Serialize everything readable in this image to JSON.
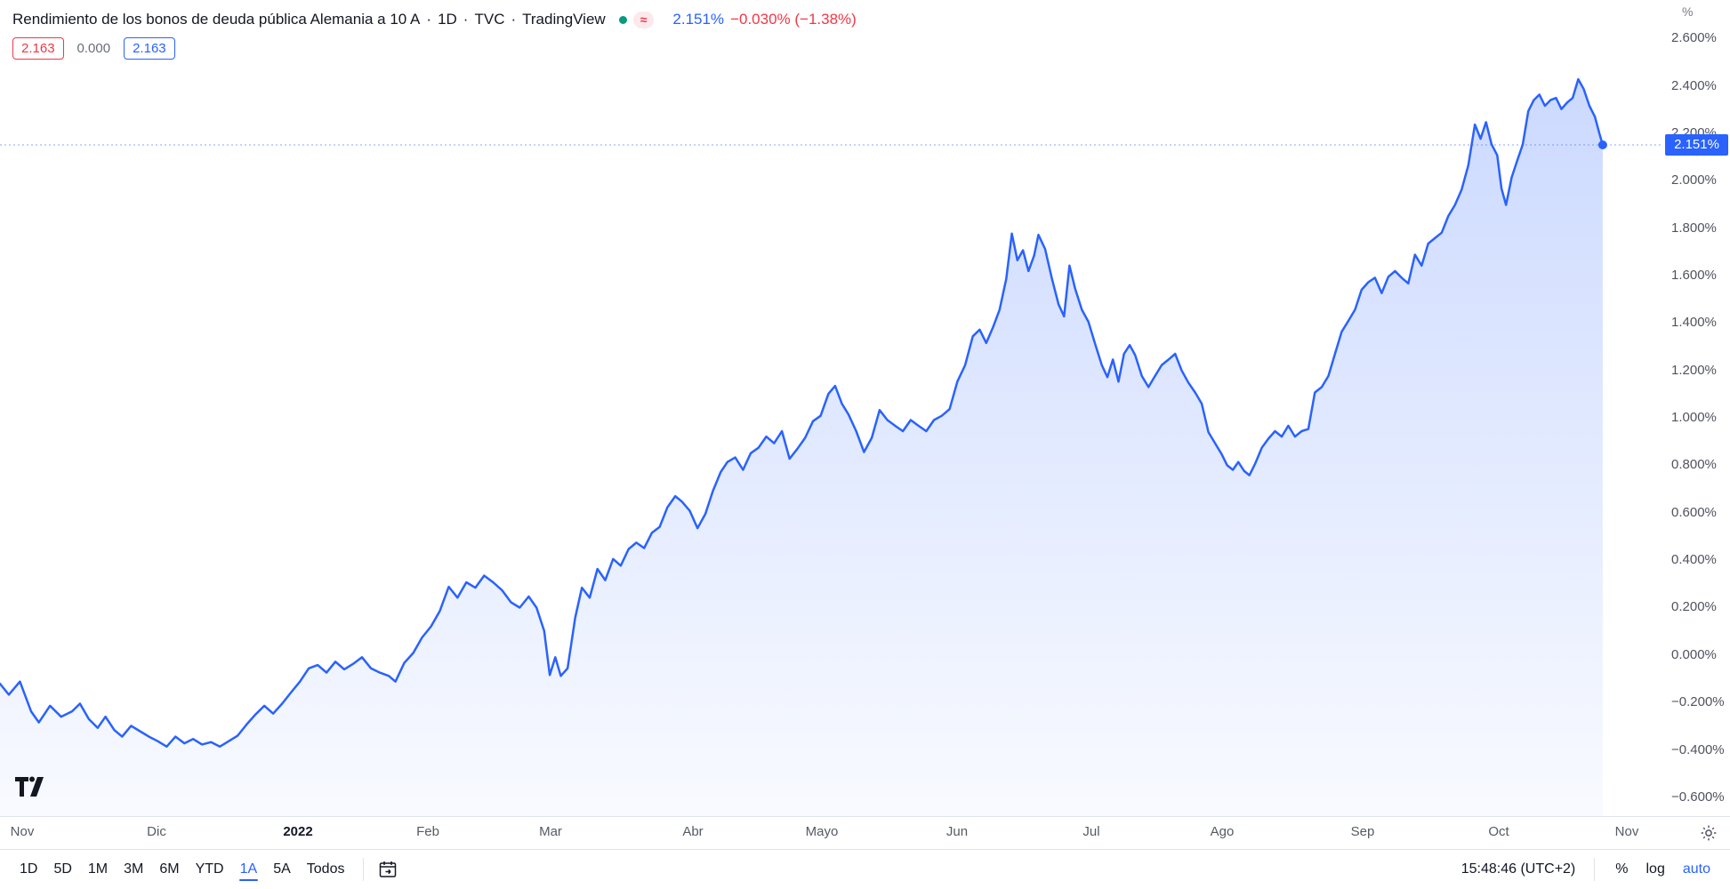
{
  "header": {
    "title": "Rendimiento de los bonos de deuda pública Alemania a 10 A",
    "sep": "·",
    "interval": "1D",
    "exchange": "TVC",
    "provider": "TradingView",
    "approx_marker": "≈",
    "last_value": "2.151%",
    "change": "−0.030% (−1.38%)",
    "badges": [
      {
        "text": "2.163",
        "variant": "red"
      },
      {
        "text": "0.000",
        "variant": "plain"
      },
      {
        "text": "2.163",
        "variant": "blue"
      }
    ]
  },
  "axes": {
    "y_unit": "%"
  },
  "colors": {
    "accent_blue": "#2962ff",
    "down_red": "#f23645",
    "up_green": "#089981",
    "border": "#e0e3eb",
    "axis_text": "#50535e"
  },
  "toolbar": {
    "ranges": [
      "1D",
      "5D",
      "1M",
      "3M",
      "6M",
      "YTD",
      "1A",
      "5A",
      "Todos"
    ],
    "active_range": "1A",
    "clock": "15:48:46 (UTC+2)",
    "percent": "%",
    "log": "log",
    "auto": "auto"
  },
  "chart_data": {
    "type": "area",
    "title": "Rendimiento de los bonos de deuda pública Alemania a 10 A",
    "interval": "1D",
    "unit": "%",
    "legend_position": "none",
    "grid": false,
    "y_axis": {
      "min": -0.679,
      "max": 2.762,
      "tick_step": 0.2
    },
    "y_ticks": [
      {
        "label": "2.600%",
        "value": 2.6
      },
      {
        "label": "2.400%",
        "value": 2.4
      },
      {
        "label": "2.200%",
        "value": 2.2
      },
      {
        "label": "2.000%",
        "value": 2.0
      },
      {
        "label": "1.800%",
        "value": 1.8
      },
      {
        "label": "1.600%",
        "value": 1.6
      },
      {
        "label": "1.400%",
        "value": 1.4
      },
      {
        "label": "1.200%",
        "value": 1.2
      },
      {
        "label": "1.000%",
        "value": 1.0
      },
      {
        "label": "0.800%",
        "value": 0.8
      },
      {
        "label": "0.600%",
        "value": 0.6
      },
      {
        "label": "0.400%",
        "value": 0.4
      },
      {
        "label": "0.200%",
        "value": 0.2
      },
      {
        "label": "0.000%",
        "value": 0.0
      },
      {
        "label": "−0.200%",
        "value": -0.2
      },
      {
        "label": "−0.400%",
        "value": -0.4
      },
      {
        "label": "−0.600%",
        "value": -0.6
      }
    ],
    "x_ticks": [
      {
        "label": "Nov",
        "f": 0.0134
      },
      {
        "label": "Dic",
        "f": 0.0943
      },
      {
        "label": "2022",
        "f": 0.1791,
        "strong": true
      },
      {
        "label": "Feb",
        "f": 0.2573
      },
      {
        "label": "Mar",
        "f": 0.3316
      },
      {
        "label": "Abr",
        "f": 0.4171
      },
      {
        "label": "Mayo",
        "f": 0.4947
      },
      {
        "label": "Jun",
        "f": 0.5762
      },
      {
        "label": "Jul",
        "f": 0.6571
      },
      {
        "label": "Ago",
        "f": 0.7353
      },
      {
        "label": "Sep",
        "f": 0.8202
      },
      {
        "label": "Oct",
        "f": 0.9018
      },
      {
        "label": "Nov",
        "f": 0.9793
      }
    ],
    "price_line": {
      "value": 2.151,
      "label": "2.151%"
    },
    "series": [
      {
        "name": "Rendimiento de los bonos de deuda pública Alemania a 10 A",
        "color": "#2962ff",
        "points": [
          [
            0.0,
            -0.121
          ],
          [
            0.0053,
            -0.167
          ],
          [
            0.012,
            -0.112
          ],
          [
            0.0187,
            -0.237
          ],
          [
            0.0234,
            -0.284
          ],
          [
            0.0301,
            -0.214
          ],
          [
            0.0368,
            -0.26
          ],
          [
            0.0434,
            -0.237
          ],
          [
            0.0481,
            -0.205
          ],
          [
            0.0535,
            -0.27
          ],
          [
            0.0588,
            -0.307
          ],
          [
            0.0635,
            -0.26
          ],
          [
            0.0688,
            -0.316
          ],
          [
            0.0735,
            -0.344
          ],
          [
            0.0789,
            -0.298
          ],
          [
            0.0842,
            -0.321
          ],
          [
            0.0896,
            -0.344
          ],
          [
            0.0949,
            -0.363
          ],
          [
            0.1003,
            -0.386
          ],
          [
            0.1056,
            -0.344
          ],
          [
            0.111,
            -0.372
          ],
          [
            0.1163,
            -0.354
          ],
          [
            0.1216,
            -0.377
          ],
          [
            0.127,
            -0.367
          ],
          [
            0.1323,
            -0.386
          ],
          [
            0.1377,
            -0.363
          ],
          [
            0.143,
            -0.34
          ],
          [
            0.1484,
            -0.293
          ],
          [
            0.1537,
            -0.251
          ],
          [
            0.1591,
            -0.214
          ],
          [
            0.1644,
            -0.247
          ],
          [
            0.1698,
            -0.205
          ],
          [
            0.1751,
            -0.158
          ],
          [
            0.1805,
            -0.112
          ],
          [
            0.1858,
            -0.056
          ],
          [
            0.1912,
            -0.042
          ],
          [
            0.1965,
            -0.074
          ],
          [
            0.2019,
            -0.028
          ],
          [
            0.2072,
            -0.06
          ],
          [
            0.2126,
            -0.037
          ],
          [
            0.2179,
            -0.009
          ],
          [
            0.2233,
            -0.056
          ],
          [
            0.2286,
            -0.074
          ],
          [
            0.234,
            -0.088
          ],
          [
            0.238,
            -0.112
          ],
          [
            0.2433,
            -0.033
          ],
          [
            0.2487,
            0.009
          ],
          [
            0.254,
            0.074
          ],
          [
            0.2594,
            0.121
          ],
          [
            0.2647,
            0.186
          ],
          [
            0.2701,
            0.288
          ],
          [
            0.2754,
            0.242
          ],
          [
            0.2807,
            0.307
          ],
          [
            0.2861,
            0.284
          ],
          [
            0.2914,
            0.335
          ],
          [
            0.2968,
            0.307
          ],
          [
            0.3021,
            0.274
          ],
          [
            0.3075,
            0.223
          ],
          [
            0.3128,
            0.2
          ],
          [
            0.3182,
            0.247
          ],
          [
            0.3229,
            0.2
          ],
          [
            0.3275,
            0.102
          ],
          [
            0.3309,
            -0.084
          ],
          [
            0.3342,
            -0.009
          ],
          [
            0.3375,
            -0.088
          ],
          [
            0.3416,
            -0.056
          ],
          [
            0.3462,
            0.158
          ],
          [
            0.3502,
            0.284
          ],
          [
            0.3549,
            0.242
          ],
          [
            0.3596,
            0.363
          ],
          [
            0.3643,
            0.316
          ],
          [
            0.369,
            0.405
          ],
          [
            0.3736,
            0.377
          ],
          [
            0.3783,
            0.447
          ],
          [
            0.383,
            0.474
          ],
          [
            0.3877,
            0.451
          ],
          [
            0.3924,
            0.516
          ],
          [
            0.397,
            0.54
          ],
          [
            0.4017,
            0.623
          ],
          [
            0.4064,
            0.67
          ],
          [
            0.4104,
            0.647
          ],
          [
            0.4151,
            0.609
          ],
          [
            0.4198,
            0.535
          ],
          [
            0.4245,
            0.595
          ],
          [
            0.4291,
            0.693
          ],
          [
            0.4338,
            0.772
          ],
          [
            0.4378,
            0.814
          ],
          [
            0.4425,
            0.833
          ],
          [
            0.4472,
            0.781
          ],
          [
            0.4518,
            0.851
          ],
          [
            0.4565,
            0.874
          ],
          [
            0.4612,
            0.921
          ],
          [
            0.4659,
            0.893
          ],
          [
            0.4706,
            0.944
          ],
          [
            0.4752,
            0.828
          ],
          [
            0.4799,
            0.87
          ],
          [
            0.4846,
            0.916
          ],
          [
            0.4893,
            0.986
          ],
          [
            0.4939,
            1.009
          ],
          [
            0.4986,
            1.102
          ],
          [
            0.5026,
            1.135
          ],
          [
            0.5067,
            1.06
          ],
          [
            0.5107,
            1.014
          ],
          [
            0.5153,
            0.944
          ],
          [
            0.52,
            0.856
          ],
          [
            0.5247,
            0.916
          ],
          [
            0.5294,
            1.033
          ],
          [
            0.5341,
            0.991
          ],
          [
            0.5387,
            0.967
          ],
          [
            0.5434,
            0.944
          ],
          [
            0.5481,
            0.991
          ],
          [
            0.5528,
            0.967
          ],
          [
            0.5575,
            0.944
          ],
          [
            0.5621,
            0.991
          ],
          [
            0.5668,
            1.009
          ],
          [
            0.5715,
            1.037
          ],
          [
            0.5762,
            1.153
          ],
          [
            0.5809,
            1.223
          ],
          [
            0.5855,
            1.344
          ],
          [
            0.5896,
            1.372
          ],
          [
            0.5936,
            1.316
          ],
          [
            0.5976,
            1.381
          ],
          [
            0.6016,
            1.456
          ],
          [
            0.6056,
            1.586
          ],
          [
            0.609,
            1.777
          ],
          [
            0.6123,
            1.665
          ],
          [
            0.6157,
            1.707
          ],
          [
            0.619,
            1.619
          ],
          [
            0.6224,
            1.684
          ],
          [
            0.625,
            1.772
          ],
          [
            0.629,
            1.712
          ],
          [
            0.633,
            1.591
          ],
          [
            0.6371,
            1.479
          ],
          [
            0.6404,
            1.428
          ],
          [
            0.6437,
            1.642
          ],
          [
            0.6471,
            1.544
          ],
          [
            0.6511,
            1.456
          ],
          [
            0.6551,
            1.405
          ],
          [
            0.6591,
            1.312
          ],
          [
            0.6631,
            1.223
          ],
          [
            0.6665,
            1.172
          ],
          [
            0.6698,
            1.246
          ],
          [
            0.6732,
            1.153
          ],
          [
            0.6765,
            1.27
          ],
          [
            0.6799,
            1.307
          ],
          [
            0.6832,
            1.265
          ],
          [
            0.6872,
            1.177
          ],
          [
            0.6912,
            1.13
          ],
          [
            0.6952,
            1.177
          ],
          [
            0.6992,
            1.223
          ],
          [
            0.7033,
            1.246
          ],
          [
            0.7073,
            1.27
          ],
          [
            0.7112,
            1.2
          ],
          [
            0.7152,
            1.149
          ],
          [
            0.7193,
            1.107
          ],
          [
            0.7233,
            1.06
          ],
          [
            0.7273,
            0.94
          ],
          [
            0.7313,
            0.893
          ],
          [
            0.7353,
            0.847
          ],
          [
            0.7386,
            0.8
          ],
          [
            0.742,
            0.781
          ],
          [
            0.7453,
            0.814
          ],
          [
            0.7487,
            0.777
          ],
          [
            0.752,
            0.758
          ],
          [
            0.7553,
            0.805
          ],
          [
            0.7594,
            0.874
          ],
          [
            0.7634,
            0.912
          ],
          [
            0.7674,
            0.944
          ],
          [
            0.7714,
            0.921
          ],
          [
            0.7754,
            0.967
          ],
          [
            0.7794,
            0.921
          ],
          [
            0.7834,
            0.944
          ],
          [
            0.7874,
            0.953
          ],
          [
            0.7914,
            1.107
          ],
          [
            0.7955,
            1.13
          ],
          [
            0.7995,
            1.177
          ],
          [
            0.8035,
            1.27
          ],
          [
            0.8075,
            1.363
          ],
          [
            0.8115,
            1.409
          ],
          [
            0.8155,
            1.456
          ],
          [
            0.8195,
            1.54
          ],
          [
            0.8235,
            1.572
          ],
          [
            0.8275,
            1.591
          ],
          [
            0.8316,
            1.526
          ],
          [
            0.8356,
            1.595
          ],
          [
            0.8396,
            1.619
          ],
          [
            0.8436,
            1.591
          ],
          [
            0.8476,
            1.567
          ],
          [
            0.8516,
            1.688
          ],
          [
            0.8556,
            1.642
          ],
          [
            0.8596,
            1.735
          ],
          [
            0.8636,
            1.758
          ],
          [
            0.8677,
            1.781
          ],
          [
            0.8717,
            1.851
          ],
          [
            0.8757,
            1.898
          ],
          [
            0.8797,
            1.963
          ],
          [
            0.8837,
            2.065
          ],
          [
            0.8877,
            2.237
          ],
          [
            0.8911,
            2.177
          ],
          [
            0.8944,
            2.247
          ],
          [
            0.8977,
            2.154
          ],
          [
            0.9011,
            2.107
          ],
          [
            0.9037,
            1.967
          ],
          [
            0.9064,
            1.898
          ],
          [
            0.9098,
            2.014
          ],
          [
            0.9131,
            2.084
          ],
          [
            0.9165,
            2.153
          ],
          [
            0.9198,
            2.293
          ],
          [
            0.9231,
            2.34
          ],
          [
            0.9265,
            2.363
          ],
          [
            0.9298,
            2.316
          ],
          [
            0.9332,
            2.34
          ],
          [
            0.9365,
            2.349
          ],
          [
            0.9398,
            2.302
          ],
          [
            0.9432,
            2.33
          ],
          [
            0.9465,
            2.349
          ],
          [
            0.9499,
            2.428
          ],
          [
            0.9532,
            2.386
          ],
          [
            0.9566,
            2.316
          ],
          [
            0.9599,
            2.27
          ],
          [
            0.9626,
            2.2
          ],
          [
            0.9646,
            2.151
          ]
        ]
      }
    ]
  }
}
